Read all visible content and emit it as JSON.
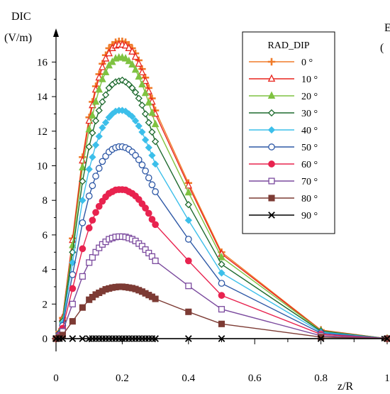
{
  "chart_data": {
    "type": "line",
    "ylabel_line1": "DIC",
    "ylabel_line2": "(V/m)",
    "xlabel": "z/R",
    "right_label_top": "E",
    "right_label_bottom": "(",
    "x_ticks": [
      "0",
      "0.2",
      "0.4",
      "0.6",
      "0.8",
      "1"
    ],
    "y_ticks": [
      "0",
      "2",
      "4",
      "6",
      "8",
      "10",
      "12",
      "14",
      "16"
    ],
    "xlim": [
      0,
      1
    ],
    "ylim": [
      0,
      17.2
    ],
    "legend_title": "RAD_DIP",
    "legend_placement": "top-right",
    "x": [
      0,
      0.01,
      0.02,
      0.05,
      0.08,
      0.1,
      0.11,
      0.12,
      0.13,
      0.14,
      0.15,
      0.16,
      0.17,
      0.18,
      0.19,
      0.2,
      0.21,
      0.22,
      0.23,
      0.24,
      0.25,
      0.26,
      0.27,
      0.28,
      0.29,
      0.3,
      0.4,
      0.5,
      0.8,
      1.0
    ],
    "series": [
      {
        "name": "0 °",
        "color": "#f07b2a",
        "marker": "plus",
        "values": [
          0,
          0.4,
          1.2,
          5.8,
          10.5,
          12.8,
          13.7,
          14.6,
          15.3,
          15.9,
          16.4,
          16.8,
          17.0,
          17.15,
          17.2,
          17.2,
          17.15,
          17.0,
          16.8,
          16.5,
          16.1,
          15.6,
          15.1,
          14.5,
          13.9,
          13.2,
          9.0,
          5.0,
          0.5,
          0
        ]
      },
      {
        "name": "10 °",
        "color": "#e8251e",
        "marker": "triangle-open",
        "values": [
          0,
          0.4,
          1.2,
          5.7,
          10.3,
          12.6,
          13.5,
          14.4,
          15.1,
          15.7,
          16.2,
          16.5,
          16.8,
          16.95,
          17.0,
          17.0,
          16.95,
          16.8,
          16.6,
          16.3,
          15.9,
          15.4,
          14.9,
          14.3,
          13.7,
          13.0,
          8.85,
          4.9,
          0.48,
          0
        ]
      },
      {
        "name": "20 °",
        "color": "#7fc241",
        "marker": "triangle",
        "values": [
          0,
          0.35,
          1.1,
          5.4,
          9.9,
          12.1,
          12.9,
          13.7,
          14.4,
          15.0,
          15.4,
          15.8,
          16.0,
          16.2,
          16.25,
          16.25,
          16.2,
          16.05,
          15.85,
          15.55,
          15.15,
          14.7,
          14.2,
          13.65,
          13.05,
          12.4,
          8.45,
          4.7,
          0.46,
          0
        ]
      },
      {
        "name": "30 °",
        "color": "#1d6a2e",
        "marker": "diamond-open",
        "values": [
          0,
          0.32,
          1.0,
          5.0,
          9.1,
          11.1,
          11.9,
          12.6,
          13.2,
          13.7,
          14.1,
          14.5,
          14.7,
          14.85,
          14.9,
          14.95,
          14.85,
          14.7,
          14.5,
          14.25,
          13.9,
          13.5,
          13.0,
          12.5,
          11.95,
          11.4,
          7.75,
          4.3,
          0.43,
          0
        ]
      },
      {
        "name": "40 °",
        "color": "#3cbfea",
        "marker": "diamond",
        "values": [
          0,
          0.28,
          0.9,
          4.4,
          8.0,
          9.8,
          10.5,
          11.2,
          11.7,
          12.2,
          12.5,
          12.8,
          13.0,
          13.15,
          13.2,
          13.2,
          13.15,
          13.0,
          12.85,
          12.6,
          12.3,
          11.95,
          11.5,
          11.05,
          10.6,
          10.1,
          6.85,
          3.8,
          0.38,
          0
        ]
      },
      {
        "name": "50 °",
        "color": "#2e58a6",
        "marker": "circle-open",
        "values": [
          0,
          0.24,
          0.75,
          3.7,
          6.7,
          8.25,
          8.85,
          9.4,
          9.85,
          10.25,
          10.55,
          10.8,
          10.95,
          11.05,
          11.1,
          11.1,
          11.05,
          10.95,
          10.8,
          10.6,
          10.35,
          10.05,
          9.7,
          9.3,
          8.9,
          8.5,
          5.75,
          3.2,
          0.32,
          0
        ]
      },
      {
        "name": "60 °",
        "color": "#e8234f",
        "marker": "circle",
        "values": [
          0,
          0.18,
          0.6,
          2.9,
          5.2,
          6.4,
          6.85,
          7.3,
          7.65,
          7.95,
          8.2,
          8.4,
          8.5,
          8.6,
          8.62,
          8.62,
          8.6,
          8.5,
          8.4,
          8.25,
          8.05,
          7.8,
          7.55,
          7.25,
          6.9,
          6.6,
          4.5,
          2.5,
          0.25,
          0
        ]
      },
      {
        "name": "70 °",
        "color": "#7b4a9e",
        "marker": "square-open",
        "values": [
          0,
          0.13,
          0.42,
          2.0,
          3.6,
          4.4,
          4.7,
          5.0,
          5.25,
          5.45,
          5.6,
          5.75,
          5.82,
          5.88,
          5.9,
          5.9,
          5.88,
          5.82,
          5.75,
          5.65,
          5.5,
          5.35,
          5.15,
          4.95,
          4.75,
          4.5,
          3.05,
          1.7,
          0.17,
          0
        ]
      },
      {
        "name": "80 °",
        "color": "#7d3b34",
        "marker": "square",
        "values": [
          0,
          0.07,
          0.21,
          1.0,
          1.8,
          2.25,
          2.4,
          2.55,
          2.65,
          2.75,
          2.85,
          2.9,
          2.95,
          2.98,
          3.0,
          3.0,
          2.98,
          2.95,
          2.92,
          2.87,
          2.8,
          2.72,
          2.62,
          2.52,
          2.42,
          2.3,
          1.55,
          0.85,
          0.09,
          0
        ]
      },
      {
        "name": "90 °",
        "color": "#000000",
        "marker": "x",
        "values": [
          0,
          0,
          0,
          0,
          0,
          0,
          0,
          0,
          0,
          0,
          0,
          0,
          0,
          0,
          0,
          0,
          0,
          0,
          0,
          0,
          0,
          0,
          0,
          0,
          0,
          0,
          0,
          0,
          0,
          0
        ]
      }
    ]
  }
}
